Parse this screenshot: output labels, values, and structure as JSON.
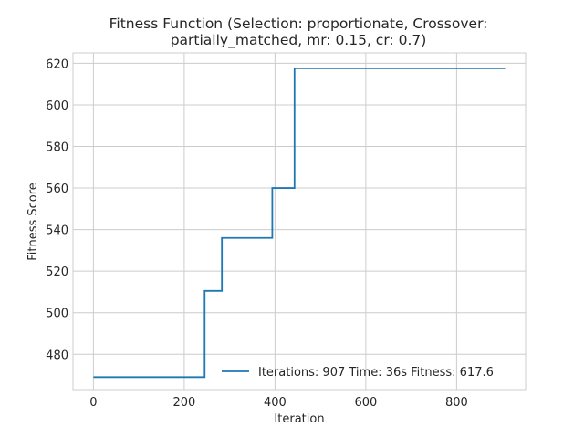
{
  "chart_data": {
    "type": "line",
    "title": [
      "Fitness Function (Selection: proportionate, Crossover:",
      "partially_matched, mr: 0.15, cr: 0.7)"
    ],
    "xlabel": "Iteration",
    "ylabel": "Fitness Score",
    "xlim": [
      -45,
      952
    ],
    "ylim": [
      463,
      625
    ],
    "xticks": [
      0,
      200,
      400,
      600,
      800
    ],
    "yticks": [
      480,
      500,
      520,
      540,
      560,
      580,
      600,
      620
    ],
    "grid": true,
    "legend_position": "lower-right",
    "series": [
      {
        "name": "Iterations: 907 Time: 36s Fitness: 617.6",
        "color": "#1f77b4",
        "x": [
          0,
          245,
          245,
          283,
          283,
          394,
          394,
          443,
          443,
          907
        ],
        "y": [
          469,
          469,
          510.5,
          510.5,
          536,
          536,
          560,
          560,
          617.6,
          617.6
        ]
      }
    ]
  }
}
